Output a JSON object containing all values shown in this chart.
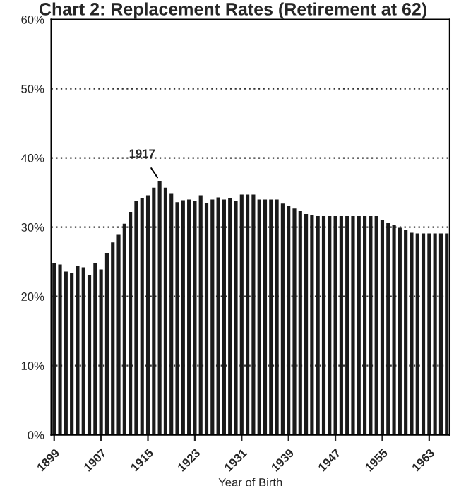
{
  "chart_data": {
    "type": "bar",
    "title": "Chart 2: Replacement Rates (Retirement at 62)",
    "xlabel": "Year of Birth",
    "x": [
      1899,
      1900,
      1901,
      1902,
      1903,
      1904,
      1905,
      1906,
      1907,
      1908,
      1909,
      1910,
      1911,
      1912,
      1913,
      1914,
      1915,
      1916,
      1917,
      1918,
      1919,
      1920,
      1921,
      1922,
      1923,
      1924,
      1925,
      1926,
      1927,
      1928,
      1929,
      1930,
      1931,
      1932,
      1933,
      1934,
      1935,
      1936,
      1937,
      1938,
      1939,
      1940,
      1941,
      1942,
      1943,
      1944,
      1945,
      1946,
      1947,
      1948,
      1949,
      1950,
      1951,
      1952,
      1953,
      1954,
      1955,
      1956,
      1957,
      1958,
      1959,
      1960,
      1961,
      1962,
      1963,
      1964,
      1965,
      1966
    ],
    "values": [
      24.8,
      24.6,
      23.6,
      23.4,
      24.4,
      24.2,
      23.1,
      24.8,
      23.9,
      26.3,
      27.8,
      29.0,
      30.5,
      32.2,
      33.8,
      34.2,
      34.6,
      35.7,
      36.7,
      35.7,
      34.9,
      33.6,
      33.9,
      34.0,
      33.8,
      34.6,
      33.5,
      34.0,
      34.3,
      34.0,
      34.2,
      33.8,
      34.7,
      34.7,
      34.7,
      34.0,
      34.0,
      34.0,
      34.0,
      33.4,
      33.1,
      32.7,
      32.4,
      31.9,
      31.7,
      31.6,
      31.6,
      31.6,
      31.6,
      31.6,
      31.6,
      31.6,
      31.6,
      31.6,
      31.6,
      31.6,
      31.0,
      30.6,
      30.3,
      29.9,
      29.6,
      29.2,
      29.1,
      29.1,
      29.1,
      29.1,
      29.1,
      29.1
    ],
    "color": "#1a1a1a",
    "xlim": [
      1898.5,
      1966.5
    ],
    "xticks": [
      1899,
      1907,
      1915,
      1923,
      1931,
      1939,
      1947,
      1955,
      1963
    ],
    "ylim": [
      0,
      60
    ],
    "yticks": [
      {
        "value": 0,
        "label": "0%"
      },
      {
        "value": 10,
        "label": "10%"
      },
      {
        "value": 20,
        "label": "20%"
      },
      {
        "value": 30,
        "label": "30%"
      },
      {
        "value": 40,
        "label": "40%"
      },
      {
        "value": 50,
        "label": "50%"
      },
      {
        "value": 60,
        "label": "60%"
      }
    ],
    "grid": "y",
    "annotations": [
      {
        "text": "1917",
        "x": 1917,
        "y": 36.7
      }
    ]
  }
}
